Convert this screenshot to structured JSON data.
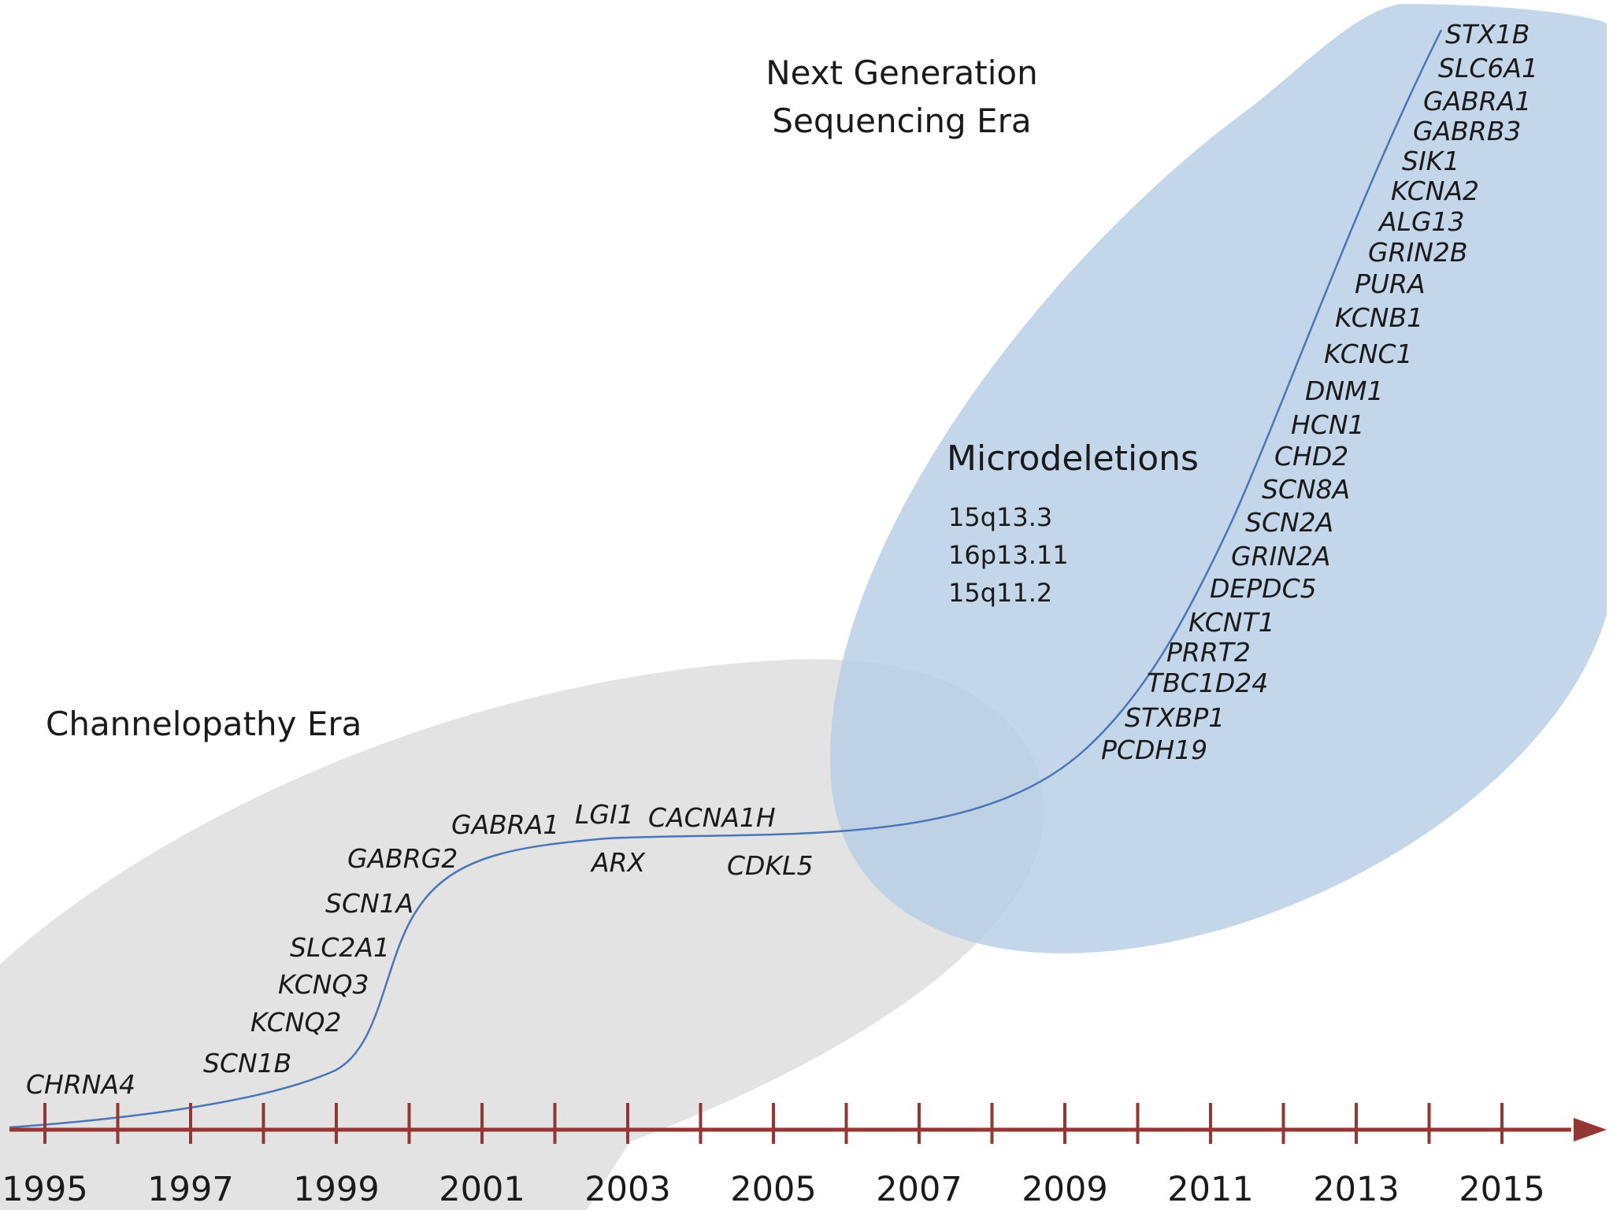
{
  "eras": {
    "channelopathy": "Channelopathy Era",
    "ngs_line1": "Next Generation",
    "ngs_line2": "Sequencing Era"
  },
  "microdeletions": {
    "title": "Microdeletions",
    "items": [
      "15q13.3",
      "16p13.11",
      "15q11.2"
    ]
  },
  "genes_channelopathy": [
    "CHRNA4",
    "SCN1B",
    "KCNQ2",
    "KCNQ3",
    "SLC2A1",
    "SCN1A",
    "GABRG2",
    "GABRA1",
    "LGI1",
    "CACNA1H",
    "ARX",
    "CDKL5"
  ],
  "genes_ngs": [
    "PCDH19",
    "STXBP1",
    "TBC1D24",
    "PRRT2",
    "KCNT1",
    "DEPDC5",
    "GRIN2A",
    "SCN2A",
    "SCN8A",
    "CHD2",
    "HCN1",
    "DNM1",
    "KCNC1",
    "KCNB1",
    "PURA",
    "GRIN2B",
    "ALG13",
    "KCNA2",
    "SIK1",
    "GABRB3",
    "GABRA1",
    "SLC6A1",
    "STX1B"
  ],
  "axis": {
    "years": [
      "1995",
      "1997",
      "1999",
      "2001",
      "2003",
      "2005",
      "2007",
      "2009",
      "2011",
      "2013",
      "2015"
    ],
    "color": "#943634"
  },
  "colors": {
    "channelopathy_region": "#e3e3e3",
    "ngs_region": "#b7cde4",
    "curve": "#4a76b8"
  }
}
